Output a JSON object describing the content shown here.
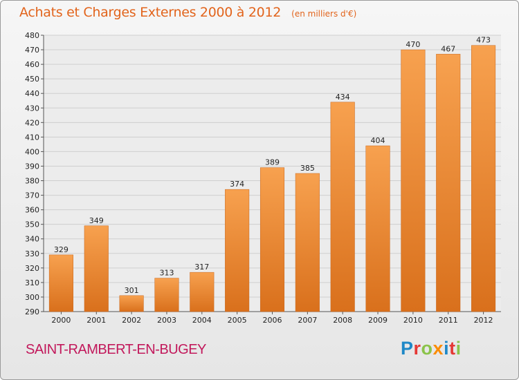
{
  "header": {
    "title": "Achats et Charges Externes 2000 à 2012",
    "subtitle": "(en milliers d'€)"
  },
  "footer": {
    "city": "SAINT-RAMBERT-EN-BUGEY",
    "logo": "Proxiti"
  },
  "colors": {
    "bar_top": "#f7a14f",
    "bar_bottom": "#d9701c",
    "title": "#e2641c",
    "city": "#c2185b"
  },
  "chart_data": {
    "type": "bar",
    "title": "Achats et Charges Externes 2000 à 2012",
    "subtitle": "(en milliers d'€)",
    "categories": [
      "2000",
      "2001",
      "2002",
      "2003",
      "2004",
      "2005",
      "2006",
      "2007",
      "2008",
      "2009",
      "2010",
      "2011",
      "2012"
    ],
    "values": [
      329,
      349,
      301,
      313,
      317,
      374,
      389,
      385,
      434,
      404,
      470,
      467,
      473
    ],
    "ylim": [
      290,
      480
    ],
    "ytick_step": 10,
    "grid": true,
    "legend": "none"
  }
}
